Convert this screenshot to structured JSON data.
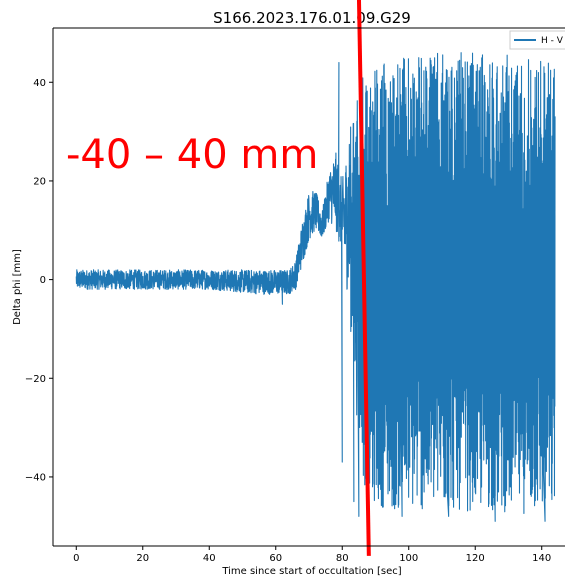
{
  "chart_data": {
    "type": "line",
    "title": "S166.2023.176.01.09.G29",
    "xlabel": "Time since start of occultation [sec]",
    "ylabel": "Delta phi [mm]",
    "xlim": [
      -7,
      147
    ],
    "ylim": [
      -54,
      51
    ],
    "xticks": [
      0,
      20,
      40,
      60,
      80,
      100,
      120,
      140
    ],
    "xtick_labels": [
      "0",
      "20",
      "40",
      "60",
      "80",
      "100",
      "120",
      "140"
    ],
    "yticks": [
      -40,
      -20,
      0,
      20,
      40
    ],
    "ytick_labels": [
      "−40",
      "−20",
      "0",
      "20",
      "40"
    ],
    "grid": false,
    "legend_position": "top-right",
    "series": [
      {
        "name": "H - V",
        "color": "#1f77b4",
        "x_range": [
          0,
          144
        ],
        "envelope": [
          {
            "x": 0,
            "low": -2,
            "high": 2
          },
          {
            "x": 20,
            "low": -2,
            "high": 2
          },
          {
            "x": 40,
            "low": -2,
            "high": 2
          },
          {
            "x": 55,
            "low": -3,
            "high": 2
          },
          {
            "x": 64,
            "low": -3,
            "high": 2
          },
          {
            "x": 66,
            "low": -2,
            "high": 4
          },
          {
            "x": 68,
            "low": 3,
            "high": 12
          },
          {
            "x": 70,
            "low": 8,
            "high": 18
          },
          {
            "x": 72,
            "low": 10,
            "high": 18
          },
          {
            "x": 74,
            "low": 8,
            "high": 14
          },
          {
            "x": 76,
            "low": 12,
            "high": 22
          },
          {
            "x": 78,
            "low": 10,
            "high": 26
          },
          {
            "x": 80,
            "low": 5,
            "high": 20
          },
          {
            "x": 82,
            "low": -5,
            "high": 30
          },
          {
            "x": 84,
            "low": -25,
            "high": 36
          },
          {
            "x": 86,
            "low": -40,
            "high": 42
          },
          {
            "x": 88,
            "low": -45,
            "high": 44
          },
          {
            "x": 95,
            "low": -47,
            "high": 45
          },
          {
            "x": 110,
            "low": -47,
            "high": 46
          },
          {
            "x": 125,
            "low": -47,
            "high": 46
          },
          {
            "x": 144,
            "low": -48,
            "high": 45
          }
        ],
        "spikes": [
          {
            "x": 62,
            "y": -5
          },
          {
            "x": 79,
            "y": 44
          },
          {
            "x": 80,
            "y": -37
          },
          {
            "x": 83.5,
            "y": -45
          },
          {
            "x": 85,
            "y": -48
          },
          {
            "x": 88,
            "y": -49
          },
          {
            "x": 98,
            "y": -48
          },
          {
            "x": 112,
            "y": -48
          },
          {
            "x": 126,
            "y": -49
          },
          {
            "x": 141,
            "y": -49
          }
        ]
      }
    ],
    "annotations": [
      {
        "text": "-40 – 40 mm",
        "color": "#ff0000"
      },
      {
        "type": "line",
        "color": "#ff0000",
        "x_start": 85,
        "y_start": 58,
        "x_end": 88,
        "y_end": -56
      }
    ]
  }
}
